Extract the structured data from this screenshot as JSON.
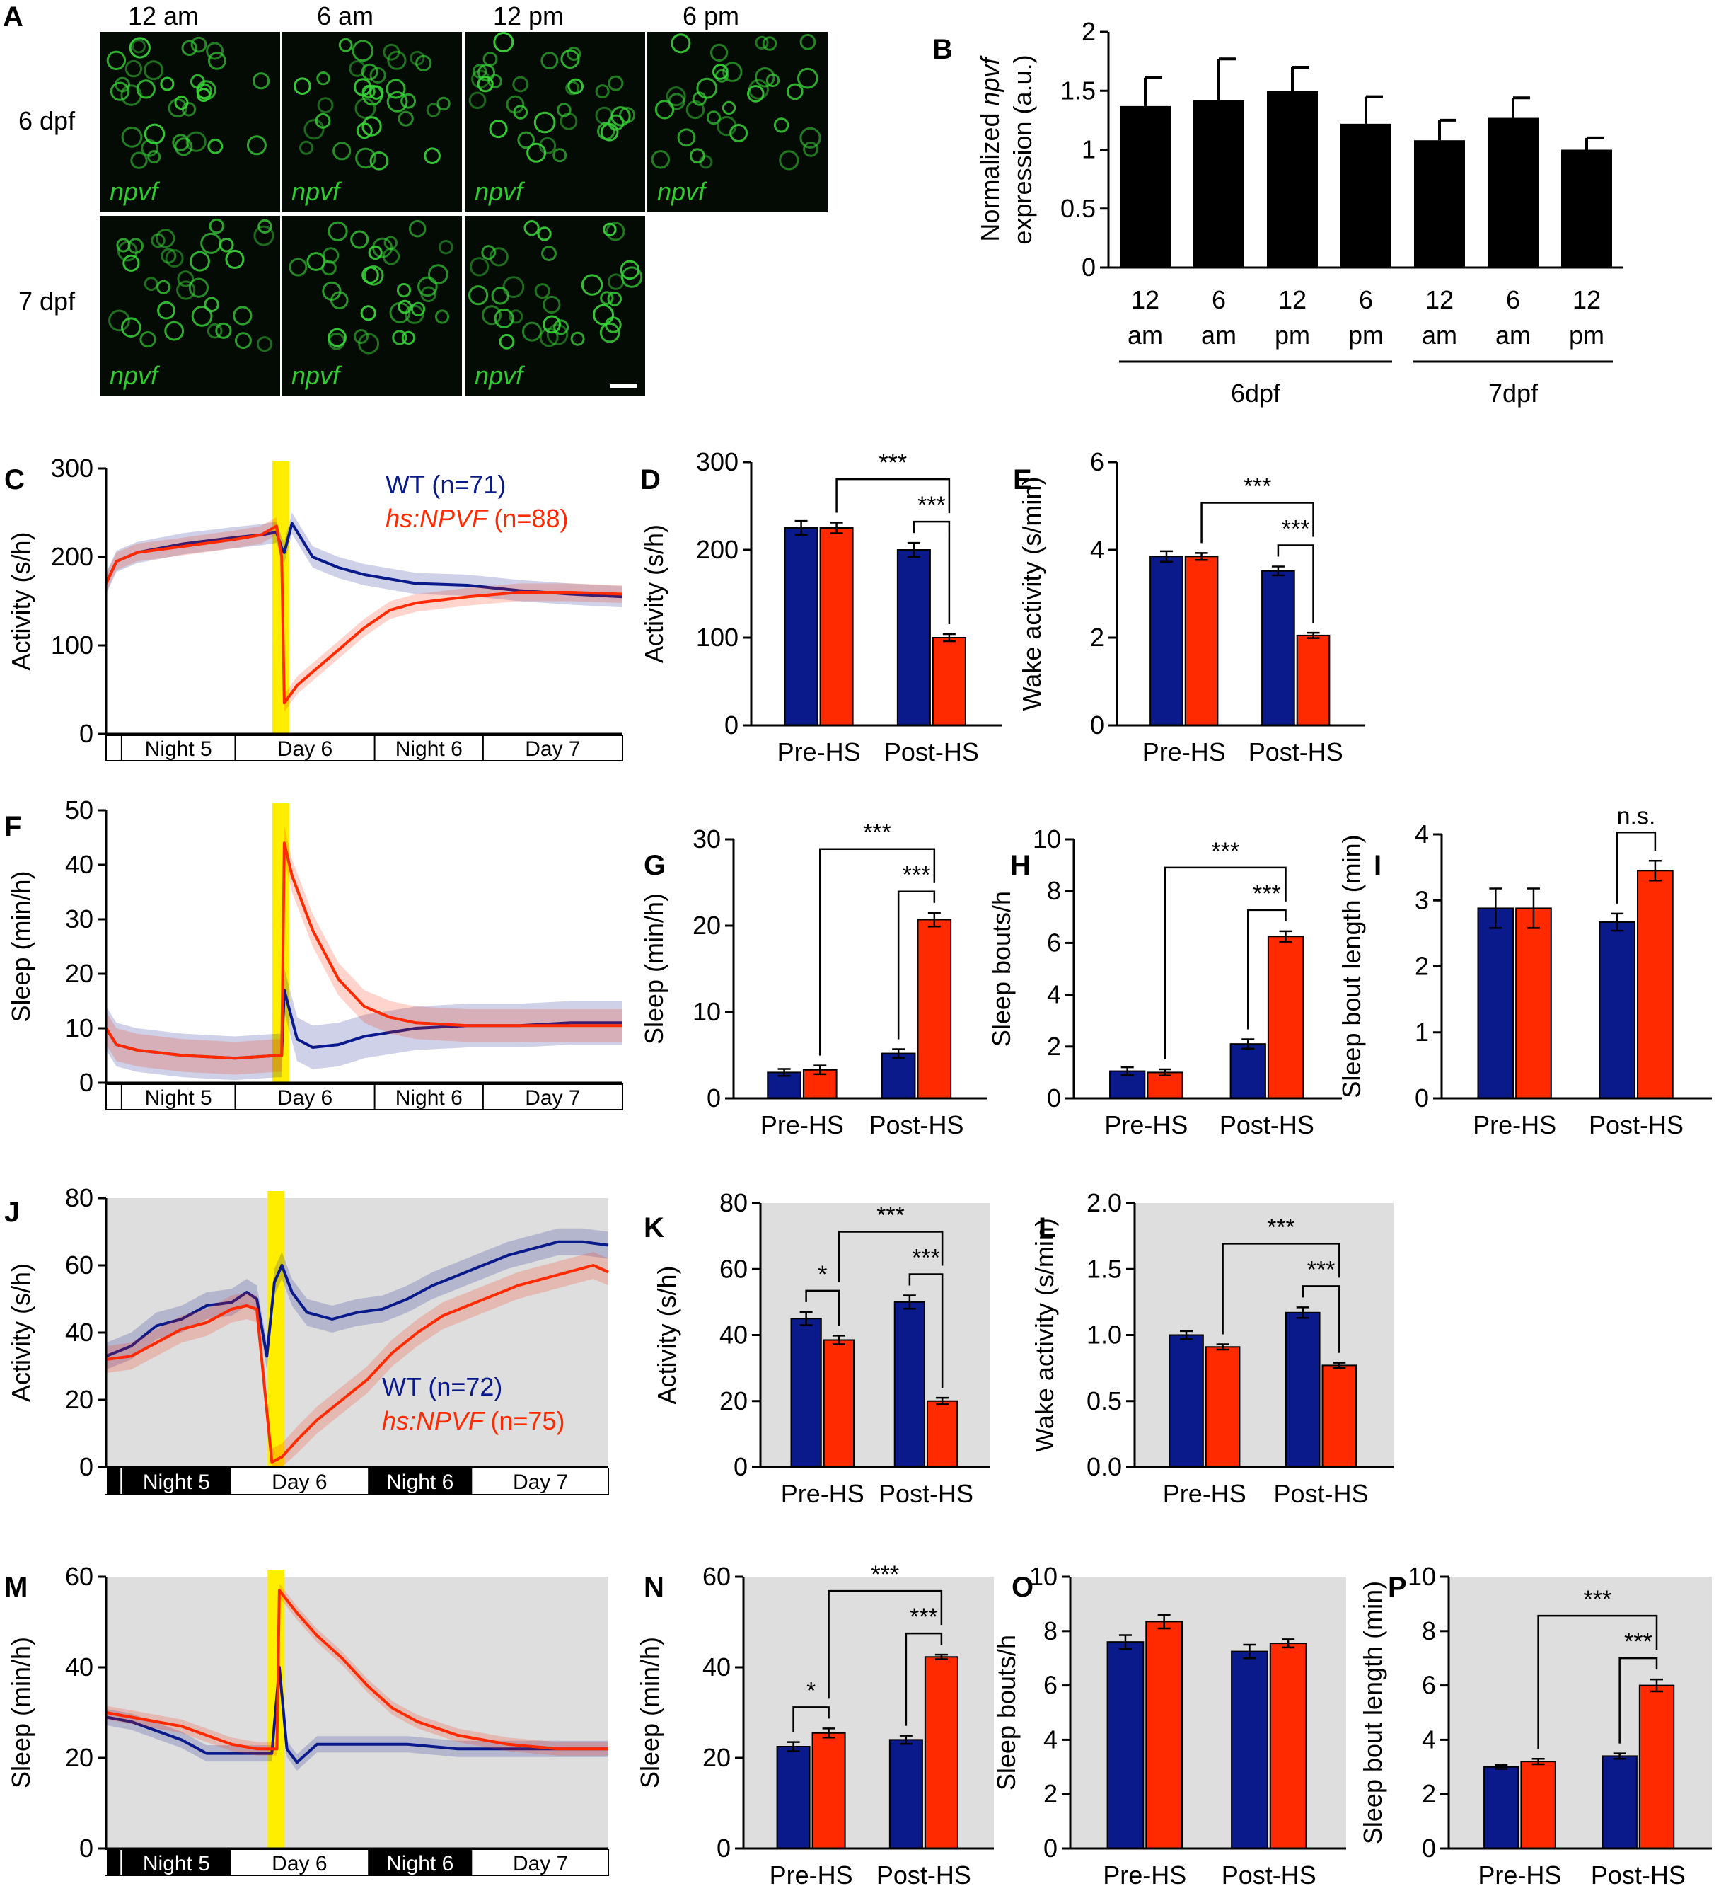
{
  "colors": {
    "wt": "#0a1a8a",
    "hs": "#ff2a00",
    "heatshock": "#ffee00",
    "gray_bg": "#dedede"
  },
  "panel_a": {
    "letter": "A",
    "times": [
      "12 am",
      "6 am",
      "12 pm",
      "6 pm"
    ],
    "rows": [
      {
        "label": "6 dpf",
        "images": 4
      },
      {
        "label": "7 dpf",
        "images": 3
      }
    ],
    "gene": "npvf"
  },
  "chart_data": [
    {
      "id": "B",
      "type": "bar",
      "letter": "B",
      "ylabel_pre": "Normalized ",
      "ylabel_italic": "npvf",
      "ylabel_line2": "expression (a.u.)",
      "ylim": [
        0,
        2
      ],
      "yticks": [
        "0",
        "0.5",
        "1",
        "1.5",
        "2"
      ],
      "categories": [
        [
          "12",
          "am"
        ],
        [
          "6",
          "am"
        ],
        [
          "12",
          "pm"
        ],
        [
          "6",
          "pm"
        ],
        [
          "12",
          "am"
        ],
        [
          "6",
          "am"
        ],
        [
          "12",
          "pm"
        ]
      ],
      "values": [
        1.37,
        1.42,
        1.5,
        1.22,
        1.08,
        1.27,
        1.0
      ],
      "errors": [
        0.24,
        0.35,
        0.2,
        0.23,
        0.17,
        0.17,
        0.1
      ],
      "groups": [
        {
          "label": "6dpf",
          "from": 0,
          "to": 3
        },
        {
          "label": "7dpf",
          "from": 4,
          "to": 6
        }
      ]
    },
    {
      "id": "C",
      "type": "line",
      "letter": "C",
      "gray": false,
      "ylabel": "Activity (s/h)",
      "ylim": [
        0,
        300
      ],
      "yticks": [
        "0",
        "100",
        "200",
        "300"
      ],
      "periods": [
        "Night 5",
        "Day 6",
        "Night 6",
        "Day 7"
      ],
      "legend": [
        {
          "name": "WT",
          "n": "(n=71)",
          "color_key": "wt"
        },
        {
          "name": "hs:NPVF",
          "n": "(n=88)",
          "color_key": "hs"
        }
      ],
      "series": [
        {
          "name": "WT",
          "color_key": "wt",
          "x": [
            0,
            0.02,
            0.06,
            0.15,
            0.25,
            0.3,
            0.33,
            0.34,
            0.345,
            0.36,
            0.4,
            0.45,
            0.5,
            0.55,
            0.6,
            0.7,
            0.8,
            0.9,
            1.0
          ],
          "y": [
            170,
            195,
            205,
            215,
            222,
            225,
            228,
            210,
            205,
            238,
            200,
            188,
            180,
            175,
            170,
            168,
            162,
            158,
            155
          ],
          "band": 12
        },
        {
          "name": "hs:NPVF",
          "color_key": "hs",
          "x": [
            0,
            0.02,
            0.06,
            0.15,
            0.25,
            0.3,
            0.33,
            0.34,
            0.345,
            0.37,
            0.4,
            0.45,
            0.5,
            0.55,
            0.6,
            0.7,
            0.8,
            0.9,
            1.0
          ],
          "y": [
            170,
            195,
            205,
            212,
            220,
            225,
            235,
            200,
            35,
            55,
            70,
            95,
            120,
            140,
            148,
            155,
            160,
            160,
            158
          ],
          "band": 10
        }
      ]
    },
    {
      "id": "D",
      "type": "bar",
      "letter": "D",
      "ylabel": "Activity (s/h)",
      "ylim": [
        0,
        300
      ],
      "yticks": [
        "0",
        "100",
        "200",
        "300"
      ],
      "categories": [
        "Pre-HS",
        "Post-HS"
      ],
      "series": [
        {
          "color_key": "wt",
          "values": [
            225,
            200
          ],
          "errors": [
            8,
            8
          ]
        },
        {
          "color_key": "hs",
          "values": [
            225,
            100
          ],
          "errors": [
            6,
            4
          ]
        }
      ],
      "sig": [
        "***",
        "***"
      ]
    },
    {
      "id": "E",
      "type": "bar",
      "letter": "E",
      "ylabel": "Wake activity (s/min)",
      "ylim": [
        0,
        6
      ],
      "yticks": [
        "0",
        "2",
        "4",
        "6"
      ],
      "categories": [
        "Pre-HS",
        "Post-HS"
      ],
      "series": [
        {
          "color_key": "wt",
          "values": [
            3.85,
            3.52
          ],
          "errors": [
            0.12,
            0.1
          ]
        },
        {
          "color_key": "hs",
          "values": [
            3.85,
            2.05
          ],
          "errors": [
            0.08,
            0.06
          ]
        }
      ],
      "sig": [
        "***",
        "***"
      ]
    },
    {
      "id": "F",
      "type": "line",
      "letter": "F",
      "gray": false,
      "ylabel": "Sleep (min/h)",
      "ylim": [
        0,
        50
      ],
      "yticks": [
        "0",
        "10",
        "20",
        "30",
        "40",
        "50"
      ],
      "periods": [
        "Night 5",
        "Day 6",
        "Night 6",
        "Day 7"
      ],
      "series": [
        {
          "name": "WT",
          "color_key": "wt",
          "x": [
            0,
            0.02,
            0.06,
            0.15,
            0.25,
            0.33,
            0.34,
            0.345,
            0.37,
            0.4,
            0.45,
            0.5,
            0.6,
            0.7,
            0.8,
            0.9,
            1.0
          ],
          "y": [
            10,
            7,
            6,
            5,
            4.5,
            5,
            5,
            17,
            8,
            6.5,
            7,
            8.5,
            10,
            10.5,
            10.5,
            11,
            11
          ],
          "band": 4
        },
        {
          "name": "hs:NPVF",
          "color_key": "hs",
          "x": [
            0,
            0.02,
            0.06,
            0.15,
            0.25,
            0.33,
            0.34,
            0.345,
            0.36,
            0.4,
            0.45,
            0.5,
            0.55,
            0.6,
            0.7,
            0.8,
            0.9,
            1.0
          ],
          "y": [
            10,
            7,
            6,
            5,
            4.5,
            5,
            5,
            44,
            38,
            28,
            19,
            14,
            12,
            11,
            10.5,
            10.5,
            10.5,
            10.5
          ],
          "band": 3
        }
      ]
    },
    {
      "id": "G",
      "type": "bar",
      "letter": "G",
      "ylabel": "Sleep (min/h)",
      "ylim": [
        0,
        30
      ],
      "yticks": [
        "0",
        "10",
        "20",
        "30"
      ],
      "categories": [
        "Pre-HS",
        "Post-HS"
      ],
      "series": [
        {
          "color_key": "wt",
          "values": [
            3,
            5.2
          ],
          "errors": [
            0.4,
            0.5
          ]
        },
        {
          "color_key": "hs",
          "values": [
            3.3,
            20.7
          ],
          "errors": [
            0.5,
            0.8
          ]
        }
      ],
      "sig": [
        "***",
        "***"
      ]
    },
    {
      "id": "H",
      "type": "bar",
      "letter": "H",
      "ylabel": "Sleep bouts/h",
      "ylim": [
        0,
        10
      ],
      "yticks": [
        "0",
        "2",
        "4",
        "6",
        "8",
        "10"
      ],
      "categories": [
        "Pre-HS",
        "Post-HS"
      ],
      "series": [
        {
          "color_key": "wt",
          "values": [
            1.05,
            2.1
          ],
          "errors": [
            0.15,
            0.18
          ]
        },
        {
          "color_key": "hs",
          "values": [
            1.0,
            6.25
          ],
          "errors": [
            0.12,
            0.2
          ]
        }
      ],
      "sig": [
        "***",
        "***"
      ]
    },
    {
      "id": "I",
      "type": "bar",
      "letter": "I",
      "ylabel": "Sleep bout length (min)",
      "ylim": [
        0,
        4
      ],
      "yticks": [
        "0",
        "1",
        "2",
        "3",
        "4"
      ],
      "categories": [
        "Pre-HS",
        "Post-HS"
      ],
      "series": [
        {
          "color_key": "wt",
          "values": [
            2.88,
            2.67
          ],
          "errors": [
            0.3,
            0.13
          ]
        },
        {
          "color_key": "hs",
          "values": [
            2.88,
            3.45
          ],
          "errors": [
            0.3,
            0.15
          ]
        }
      ],
      "sig": [
        "n.s."
      ]
    },
    {
      "id": "J",
      "type": "line",
      "letter": "J",
      "gray": true,
      "ylabel": "Activity (s/h)",
      "ylim": [
        0,
        80
      ],
      "yticks": [
        "0",
        "20",
        "40",
        "60",
        "80"
      ],
      "periods": [
        "Night 5",
        "Day 6",
        "Night 6",
        "Day 7"
      ],
      "legend": [
        {
          "name": "WT",
          "n": "(n=72)",
          "color_key": "wt"
        },
        {
          "name": "hs:NPVF",
          "n": "(n=75)",
          "color_key": "hs"
        }
      ],
      "series": [
        {
          "name": "WT",
          "color_key": "wt",
          "x": [
            0,
            0.05,
            0.1,
            0.15,
            0.2,
            0.25,
            0.28,
            0.3,
            0.32,
            0.335,
            0.35,
            0.37,
            0.4,
            0.45,
            0.5,
            0.55,
            0.6,
            0.65,
            0.7,
            0.75,
            0.8,
            0.85,
            0.9,
            0.95,
            1.0
          ],
          "y": [
            33,
            36,
            42,
            44,
            48,
            49,
            52,
            50,
            33,
            55,
            60,
            52,
            46,
            44,
            46,
            47,
            50,
            54,
            57,
            60,
            63,
            65,
            67,
            67,
            66
          ],
          "band": 4
        },
        {
          "name": "hs:NPVF",
          "color_key": "hs",
          "x": [
            0,
            0.05,
            0.1,
            0.15,
            0.2,
            0.25,
            0.28,
            0.3,
            0.33,
            0.35,
            0.38,
            0.42,
            0.47,
            0.52,
            0.57,
            0.62,
            0.67,
            0.72,
            0.77,
            0.82,
            0.87,
            0.92,
            0.97,
            1.0
          ],
          "y": [
            32,
            33,
            37,
            41,
            43,
            47,
            48,
            47,
            1.5,
            3,
            8,
            14,
            20,
            26,
            34,
            40,
            45,
            48,
            51,
            54,
            56,
            58,
            60,
            58
          ],
          "band": 4
        }
      ]
    },
    {
      "id": "K",
      "type": "bar",
      "letter": "K",
      "gray": true,
      "ylabel": "Activity (s/h)",
      "ylim": [
        0,
        80
      ],
      "yticks": [
        "0",
        "20",
        "40",
        "60",
        "80"
      ],
      "categories": [
        "Pre-HS",
        "Post-HS"
      ],
      "series": [
        {
          "color_key": "wt",
          "values": [
            45,
            50
          ],
          "errors": [
            2,
            2
          ]
        },
        {
          "color_key": "hs",
          "values": [
            38.5,
            20
          ],
          "errors": [
            1.3,
            1
          ]
        }
      ],
      "sig": [
        "*",
        "***",
        "***"
      ]
    },
    {
      "id": "L",
      "type": "bar",
      "letter": "L",
      "gray": true,
      "ylabel": "Wake activity (s/min)",
      "ylim": [
        0,
        2
      ],
      "yticks": [
        "0.0",
        "0.5",
        "1.0",
        "1.5",
        "2.0"
      ],
      "categories": [
        "Pre-HS",
        "Post-HS"
      ],
      "series": [
        {
          "color_key": "wt",
          "values": [
            1.0,
            1.17
          ],
          "errors": [
            0.03,
            0.04
          ]
        },
        {
          "color_key": "hs",
          "values": [
            0.91,
            0.77
          ],
          "errors": [
            0.02,
            0.02
          ]
        }
      ],
      "sig": [
        "***",
        "***"
      ]
    },
    {
      "id": "M",
      "type": "line",
      "letter": "M",
      "gray": true,
      "ylabel": "Sleep (min/h)",
      "ylim": [
        0,
        60
      ],
      "yticks": [
        "0",
        "20",
        "40",
        "60"
      ],
      "periods": [
        "Night 5",
        "Day 6",
        "Night 6",
        "Day 7"
      ],
      "series": [
        {
          "name": "WT",
          "color_key": "wt",
          "x": [
            0,
            0.05,
            0.1,
            0.15,
            0.2,
            0.25,
            0.28,
            0.3,
            0.33,
            0.345,
            0.36,
            0.38,
            0.42,
            0.5,
            0.6,
            0.7,
            0.8,
            0.9,
            1.0
          ],
          "y": [
            29,
            28,
            26,
            24,
            21,
            21,
            21,
            21,
            21,
            40,
            22,
            19,
            23,
            23,
            23,
            22,
            22,
            22,
            22
          ],
          "band": 1.8
        },
        {
          "name": "hs:NPVF",
          "color_key": "hs",
          "x": [
            0,
            0.05,
            0.1,
            0.15,
            0.2,
            0.25,
            0.3,
            0.32,
            0.34,
            0.345,
            0.38,
            0.42,
            0.47,
            0.52,
            0.57,
            0.62,
            0.7,
            0.8,
            0.9,
            1.0
          ],
          "y": [
            30,
            29,
            28,
            27,
            25,
            23,
            22,
            22,
            22,
            57,
            52,
            47,
            42,
            36,
            31,
            28,
            25,
            23,
            22,
            22
          ],
          "band": 1.5
        }
      ]
    },
    {
      "id": "N",
      "type": "bar",
      "letter": "N",
      "gray": true,
      "ylabel": "Sleep (min/h)",
      "ylim": [
        0,
        60
      ],
      "yticks": [
        "0",
        "20",
        "40",
        "60"
      ],
      "categories": [
        "Pre-HS",
        "Post-HS"
      ],
      "series": [
        {
          "color_key": "wt",
          "values": [
            22.5,
            24
          ],
          "errors": [
            1,
            0.9
          ]
        },
        {
          "color_key": "hs",
          "values": [
            25.5,
            42.3
          ],
          "errors": [
            1,
            0.5
          ]
        }
      ],
      "sig": [
        "*",
        "***",
        "***"
      ]
    },
    {
      "id": "O",
      "type": "bar",
      "letter": "O",
      "gray": true,
      "ylabel": "Sleep bouts/h",
      "ylim": [
        0,
        10
      ],
      "yticks": [
        "0",
        "2",
        "4",
        "6",
        "8",
        "10"
      ],
      "categories": [
        "Pre-HS",
        "Post-HS"
      ],
      "series": [
        {
          "color_key": "wt",
          "values": [
            7.6,
            7.25
          ],
          "errors": [
            0.25,
            0.25
          ]
        },
        {
          "color_key": "hs",
          "values": [
            8.35,
            7.55
          ],
          "errors": [
            0.25,
            0.15
          ]
        }
      ],
      "sig": []
    },
    {
      "id": "P",
      "type": "bar",
      "letter": "P",
      "gray": true,
      "ylabel": "Sleep bout length (min)",
      "ylim": [
        0,
        10
      ],
      "yticks": [
        "0",
        "2",
        "4",
        "6",
        "8",
        "10"
      ],
      "categories": [
        "Pre-HS",
        "Post-HS"
      ],
      "series": [
        {
          "color_key": "wt",
          "values": [
            3.0,
            3.4
          ],
          "errors": [
            0.07,
            0.1
          ]
        },
        {
          "color_key": "hs",
          "values": [
            3.2,
            6.0
          ],
          "errors": [
            0.1,
            0.22
          ]
        }
      ],
      "sig": [
        "***",
        "***"
      ]
    }
  ]
}
